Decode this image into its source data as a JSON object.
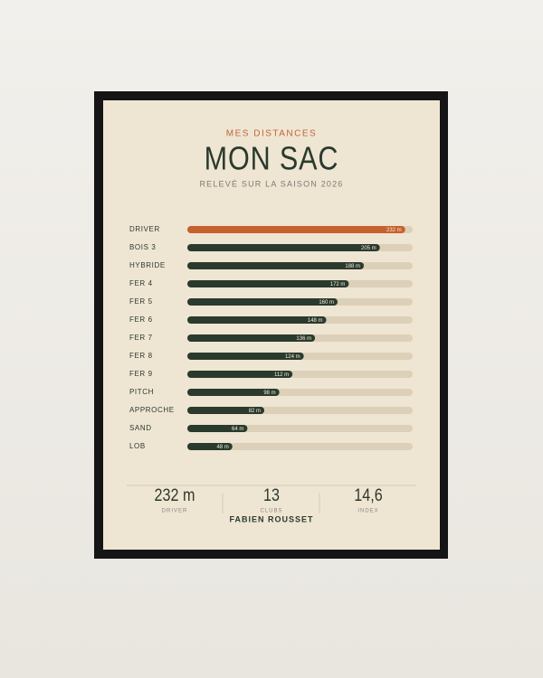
{
  "chart_data": {
    "type": "bar",
    "orientation": "horizontal",
    "kicker": "MES DISTANCES",
    "title": "MON SAC",
    "subtitle": "RELEVÉ SUR LA SAISON 2026",
    "categories": [
      "DRIVER",
      "BOIS 3",
      "HYBRIDE",
      "FER 4",
      "FER 5",
      "FER 6",
      "FER 7",
      "FER 8",
      "FER 9",
      "PITCH",
      "APPROCHE",
      "SAND",
      "LOB"
    ],
    "values": [
      232,
      205,
      188,
      172,
      160,
      148,
      136,
      124,
      112,
      98,
      82,
      64,
      48
    ],
    "value_labels": [
      "232 m",
      "205 m",
      "188 m",
      "172 m",
      "160 m",
      "148 m",
      "136 m",
      "124 m",
      "112 m",
      "98 m",
      "82 m",
      "64 m",
      "48 m"
    ],
    "colors": [
      "#c5612d",
      "#2a3a2d",
      "#2a3a2d",
      "#2a3a2d",
      "#2a3a2d",
      "#2a3a2d",
      "#2a3a2d",
      "#2a3a2d",
      "#2a3a2d",
      "#2a3a2d",
      "#2a3a2d",
      "#2a3a2d",
      "#2a3a2d"
    ],
    "xlim": [
      0,
      240
    ]
  },
  "stats": [
    {
      "value": "232 m",
      "label": "DRIVER"
    },
    {
      "value": "13",
      "label": "CLUBS"
    },
    {
      "value": "14,6",
      "label": "INDEX"
    }
  ],
  "owner": "FABIEN ROUSSET"
}
